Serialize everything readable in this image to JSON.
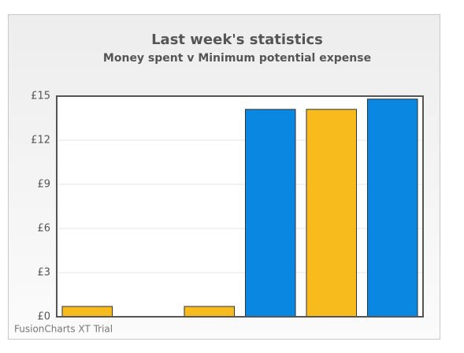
{
  "chart_data": {
    "type": "bar",
    "title": "Last week's statistics",
    "subtitle": "Money spent v Minimum potential expense",
    "categories": [
      null,
      null,
      null,
      null,
      null,
      null
    ],
    "values": [
      0.7,
      0,
      0.7,
      14.1,
      14.1,
      14.8
    ],
    "colors": [
      "#f8bb1e",
      "#0a87e0",
      "#f8bb1e",
      "#0a87e0",
      "#f8bb1e",
      "#0a87e0"
    ],
    "ylim": [
      0,
      15
    ],
    "yticks": [
      {
        "value": 0,
        "label": "£0"
      },
      {
        "value": 3,
        "label": "£3"
      },
      {
        "value": 6,
        "label": "£6"
      },
      {
        "value": 9,
        "label": "£9"
      },
      {
        "value": 12,
        "label": "£12"
      },
      {
        "value": 15,
        "label": "£15"
      }
    ],
    "grid": true,
    "watermark": "FusionCharts XT Trial"
  }
}
